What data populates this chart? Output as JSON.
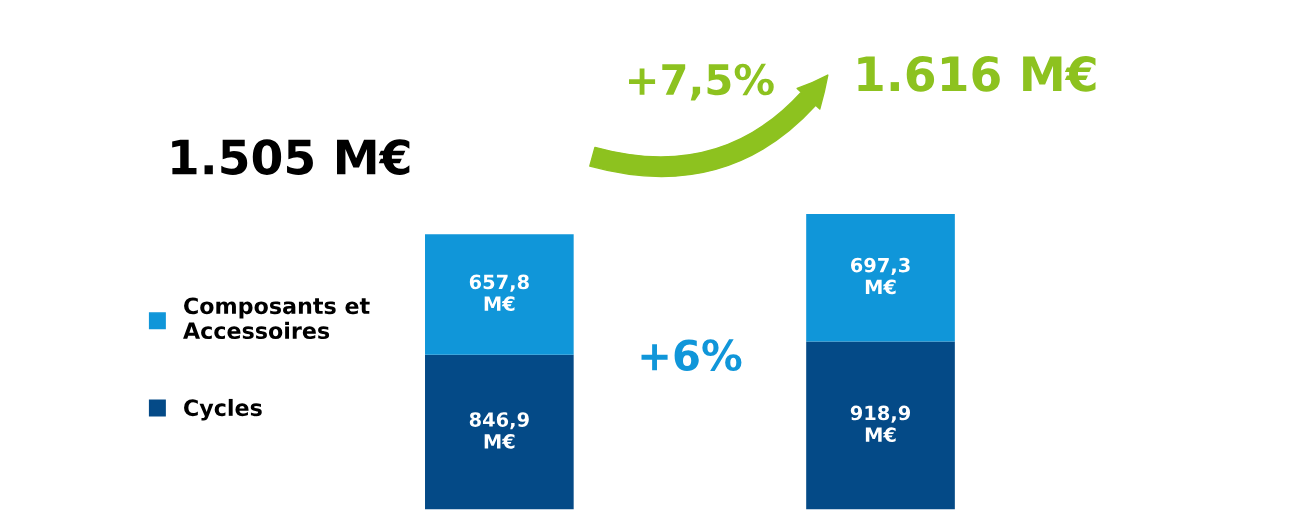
{
  "chart_data": {
    "type": "bar",
    "stacked": true,
    "categories": [
      null,
      null
    ],
    "series": [
      {
        "name": "Cycles",
        "color": "#044a87",
        "values": [
          846.9,
          918.9
        ],
        "value_labels": [
          "846,9\nM€",
          "918,9\nM€"
        ]
      },
      {
        "name": "Composants et\nAccessoires",
        "color": "#1096d9",
        "values": [
          657.8,
          697.3
        ],
        "value_labels": [
          "657,8\nM€",
          "697,3\nM€"
        ]
      }
    ],
    "totals": [
      "1.505 M€",
      "1.616 M€"
    ],
    "annotations": [
      "+7,5%",
      "+6%"
    ],
    "legend": "left",
    "grid": false
  }
}
